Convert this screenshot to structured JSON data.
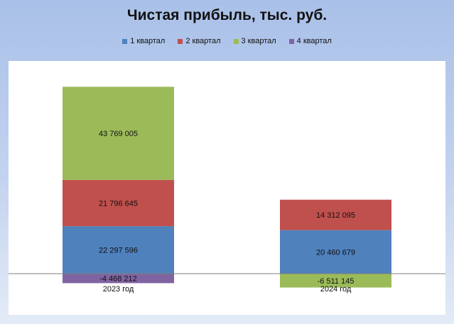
{
  "chart_data": {
    "type": "stacked-bar",
    "title": "Чистая прибыль, тыс. руб.",
    "categories": [
      "2023 год",
      "2024 год"
    ],
    "series": [
      {
        "name": "1 квартал",
        "color": "#4f81bd",
        "values": [
          22297596,
          20460679
        ],
        "labels": [
          "22 297 596",
          "20 460 679"
        ]
      },
      {
        "name": "2 квартал",
        "color": "#c0504d",
        "values": [
          21796645,
          14312095
        ],
        "labels": [
          "21 796 645",
          "14 312 095"
        ]
      },
      {
        "name": "3 квартал",
        "color": "#9bbb59",
        "values": [
          43769005,
          -6511145
        ],
        "labels": [
          "43 769 005",
          "-6 511 145"
        ]
      },
      {
        "name": "4 квартал",
        "color": "#8064a2",
        "values": [
          -4468212,
          0
        ],
        "labels": [
          "-4 468 212",
          ""
        ]
      }
    ],
    "ylim": [
      -20000000,
      90000000
    ],
    "legend_position": "top",
    "grid": false
  }
}
